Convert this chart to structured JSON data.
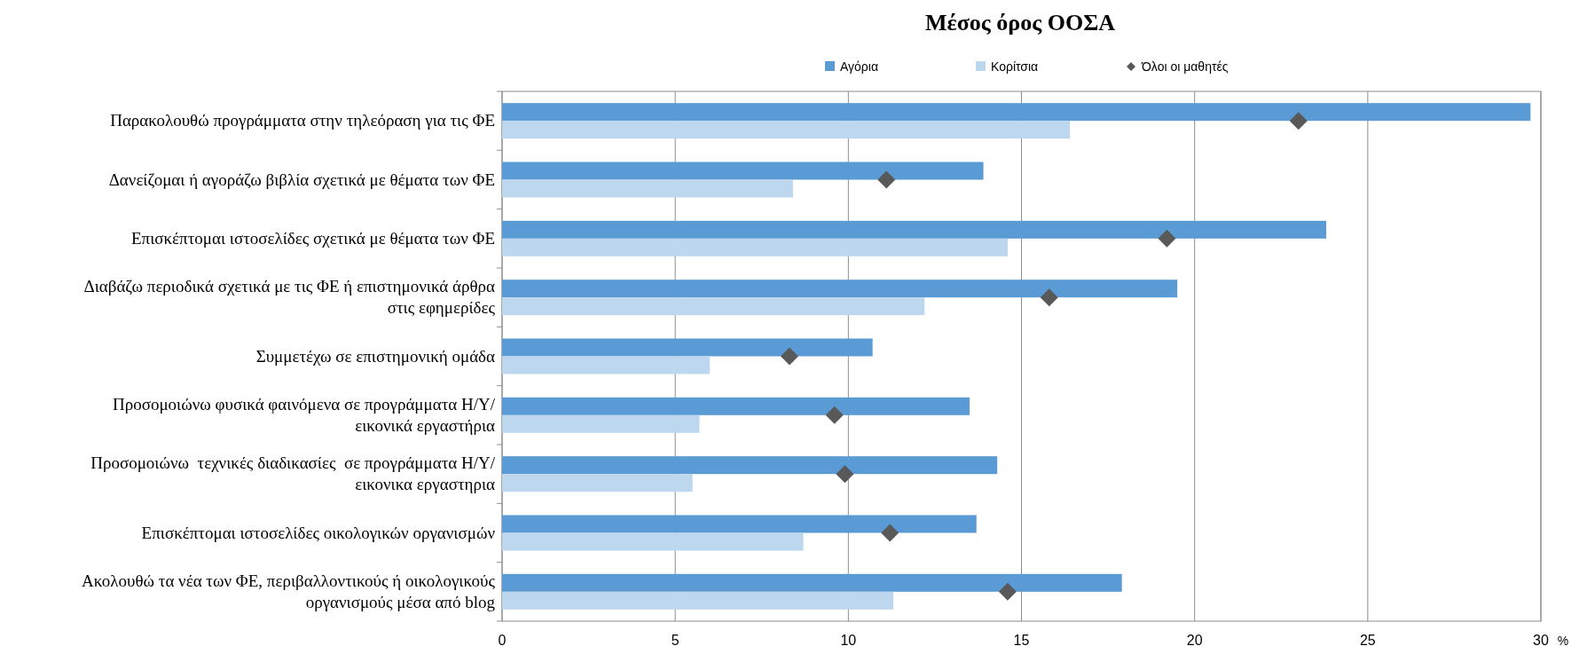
{
  "chart_data": {
    "type": "bar",
    "orientation": "horizontal",
    "title": "Μέσος όρος ΟΟΣΑ",
    "xlabel": "%",
    "categories": [
      "Παρακολουθώ προγράμματα στην τηλεόραση για τις ΦΕ",
      "Δανείζομαι ή αγοράζω βιβλία σχετικά με θέματα των ΦΕ",
      "Επισκέπτομαι ιστοσελίδες σχετικά με θέματα των ΦΕ",
      "Διαβάζω περιοδικά σχετικά με τις ΦΕ ή επιστημονικά άρθρα\nστις εφημερίδες",
      "Συμμετέχω σε επιστημονική ομάδα",
      "Προσομοιώνω φυσικά φαινόμενα σε προγράμματα Η/Υ/\nεικονικά εργαστήρια",
      "Προσομοιώνω  τεχνικές διαδικασίες  σε προγράμματα Η/Υ/\nεικονικα εργαστηρια",
      "Επισκέπτομαι ιστοσελίδες οικολογικών οργανισμών",
      "Ακολουθώ τα νέα των ΦΕ, περιβαλλοντικούς ή οικολογικούς\nοργανισμούς μέσα από blog"
    ],
    "series": [
      {
        "name": "Αγόρια",
        "color": "#5b9bd5",
        "values": [
          29.7,
          13.9,
          23.8,
          19.5,
          10.7,
          13.5,
          14.3,
          13.7,
          17.9
        ]
      },
      {
        "name": "Κορίτσια",
        "color": "#bdd7ee",
        "values": [
          16.4,
          8.4,
          14.6,
          12.2,
          6.0,
          5.7,
          5.5,
          8.7,
          11.3
        ]
      },
      {
        "name": "Όλοι οι μαθητές",
        "type": "scatter",
        "marker": "diamond",
        "color": "#595959",
        "values": [
          23.0,
          11.1,
          19.2,
          15.8,
          8.3,
          9.6,
          9.9,
          11.2,
          14.6
        ]
      }
    ],
    "xlim": [
      0,
      30
    ],
    "xticks": [
      0,
      5,
      10,
      15,
      20,
      25,
      30
    ],
    "grid": "x",
    "legend": "top"
  }
}
